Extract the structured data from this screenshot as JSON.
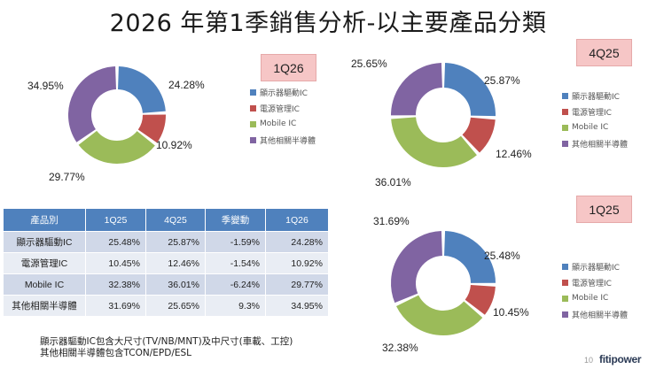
{
  "title": "2026 年第1季銷售分析-以主要產品分類",
  "colors": {
    "display_driver_ic": "#4f81bd",
    "power_management_ic": "#c0504d",
    "mobile_ic": "#9bbb59",
    "other_semiconductor": "#8064a2"
  },
  "chart_data": [
    {
      "type": "pie",
      "variant": "donut",
      "badge": "1Q26",
      "categories": [
        "顯示器驅動IC",
        "電源管理IC",
        "Mobile IC",
        "其他相關半導體"
      ],
      "values": [
        24.28,
        10.92,
        29.77,
        34.95
      ],
      "value_labels": [
        "24.28%",
        "10.92%",
        "29.77%",
        "34.95%"
      ],
      "legend": [
        "顯示器驅動IC",
        "電源管理IC",
        "Mobile IC",
        "其他相關半導體"
      ],
      "legend_position": "right"
    },
    {
      "type": "pie",
      "variant": "donut",
      "badge": "4Q25",
      "categories": [
        "顯示器驅動IC",
        "電源管理IC",
        "Mobile IC",
        "其他相關半導體"
      ],
      "values": [
        25.87,
        12.46,
        36.01,
        25.65
      ],
      "value_labels": [
        "25.87%",
        "12.46%",
        "36.01%",
        "25.65%"
      ],
      "legend": [
        "顯示器驅動IC",
        "電源管理IC",
        "Mobile IC",
        "其他相關半導體"
      ],
      "legend_position": "right"
    },
    {
      "type": "pie",
      "variant": "donut",
      "badge": "1Q25",
      "categories": [
        "顯示器驅動IC",
        "電源管理IC",
        "Mobile IC",
        "其他相關半導體"
      ],
      "values": [
        25.48,
        10.45,
        32.38,
        31.69
      ],
      "value_labels": [
        "25.48%",
        "10.45%",
        "32.38%",
        "31.69%"
      ],
      "legend": [
        "顯示器驅動IC",
        "電源管理IC",
        "Mobile IC",
        "其他相關半導體"
      ],
      "legend_position": "right"
    },
    {
      "type": "table",
      "headers": [
        "產品別",
        "1Q25",
        "4Q25",
        "季變動",
        "1Q26"
      ],
      "rows": [
        [
          "顯示器驅動IC",
          "25.48%",
          "25.87%",
          "-1.59%",
          "24.28%"
        ],
        [
          "電源管理IC",
          "10.45%",
          "12.46%",
          "-1.54%",
          "10.92%"
        ],
        [
          "Mobile IC",
          "32.38%",
          "36.01%",
          "-6.24%",
          "29.77%"
        ],
        [
          "其他相關半導體",
          "31.69%",
          "25.65%",
          "9.3%",
          "34.95%"
        ]
      ]
    }
  ],
  "notes": [
    "顯示器驅動IC包含大尺寸(TV/NB/MNT)及中尺寸(車載、工控)",
    "其他相關半導體包含TCON/EPD/ESL"
  ],
  "page_number": "10",
  "brand": "fitipower"
}
